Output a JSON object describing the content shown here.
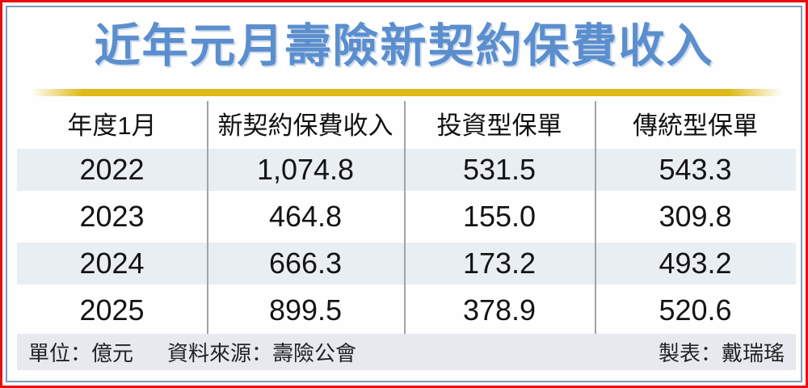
{
  "title": "近年元月壽險新契約保費收入",
  "table": {
    "columns": [
      "年度1月",
      "新契約保費收入",
      "投資型保單",
      "傳統型保單"
    ],
    "rows": [
      [
        "2022",
        "1,074.8",
        "531.5",
        "543.3"
      ],
      [
        "2023",
        "464.8",
        "155.0",
        "309.8"
      ],
      [
        "2024",
        "666.3",
        "173.2",
        "493.2"
      ],
      [
        "2025",
        "899.5",
        "378.9",
        "520.6"
      ]
    ]
  },
  "footer": {
    "unit": "單位：億元",
    "source": "資料來源：壽險公會",
    "credit": "製表：戴瑞瑤"
  },
  "colors": {
    "outer_border_red": "#ea0d0d",
    "inner_border_blue": "#7e9cba",
    "title_blue": "#5b8ecd",
    "gold_line": "#deb917",
    "row_shade": "#e9eef3",
    "footer_bg": "#e6eaef",
    "divider_gray": "#a3a3a3"
  },
  "chart_data": {
    "type": "table",
    "title": "近年元月壽險新契約保費收入",
    "categories": [
      "2022",
      "2023",
      "2024",
      "2025"
    ],
    "category_label": "年度1月",
    "series": [
      {
        "name": "新契約保費收入",
        "values": [
          1074.8,
          464.8,
          666.3,
          899.5
        ]
      },
      {
        "name": "投資型保單",
        "values": [
          531.5,
          155.0,
          173.2,
          378.9
        ]
      },
      {
        "name": "傳統型保單",
        "values": [
          543.3,
          309.8,
          493.2,
          520.6
        ]
      }
    ],
    "unit": "億元",
    "source": "壽險公會",
    "credit": "戴瑞瑤"
  }
}
